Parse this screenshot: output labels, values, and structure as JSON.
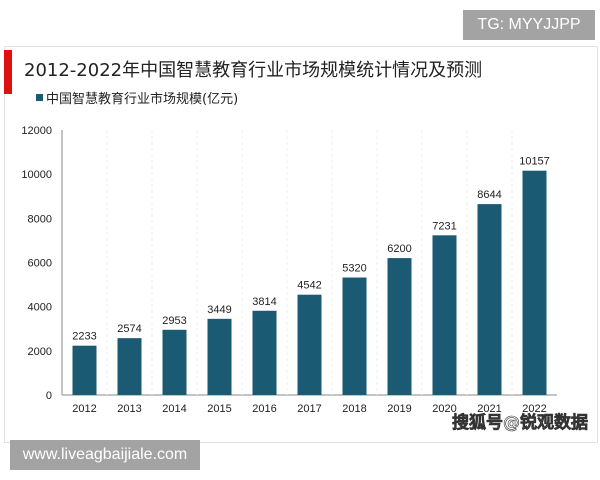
{
  "badges": {
    "top": "TG: MYYJJPP",
    "bottom": "www.liveagbaijiale.com"
  },
  "watermark": "搜狐号@锐观数据",
  "colors": {
    "bar": "#1a5a72",
    "accent": "#e01010"
  },
  "chart_data": {
    "type": "bar",
    "title": "2012-2022年中国智慧教育行业市场规模统计情况及预测",
    "legend": "中国智慧教育行业市场规模(亿元)",
    "legend_position": "top-left",
    "categories": [
      "2012",
      "2013",
      "2014",
      "2015",
      "2016",
      "2017",
      "2018",
      "2019",
      "2020",
      "2021",
      "2022"
    ],
    "values": [
      2233,
      2574,
      2953,
      3449,
      3814,
      4542,
      5320,
      6200,
      7231,
      8644,
      10157
    ],
    "ylim": [
      0,
      12000
    ],
    "yticks": [
      "0",
      "2000",
      "4000",
      "6000",
      "8000",
      "10000",
      "12000"
    ],
    "grid": false
  }
}
